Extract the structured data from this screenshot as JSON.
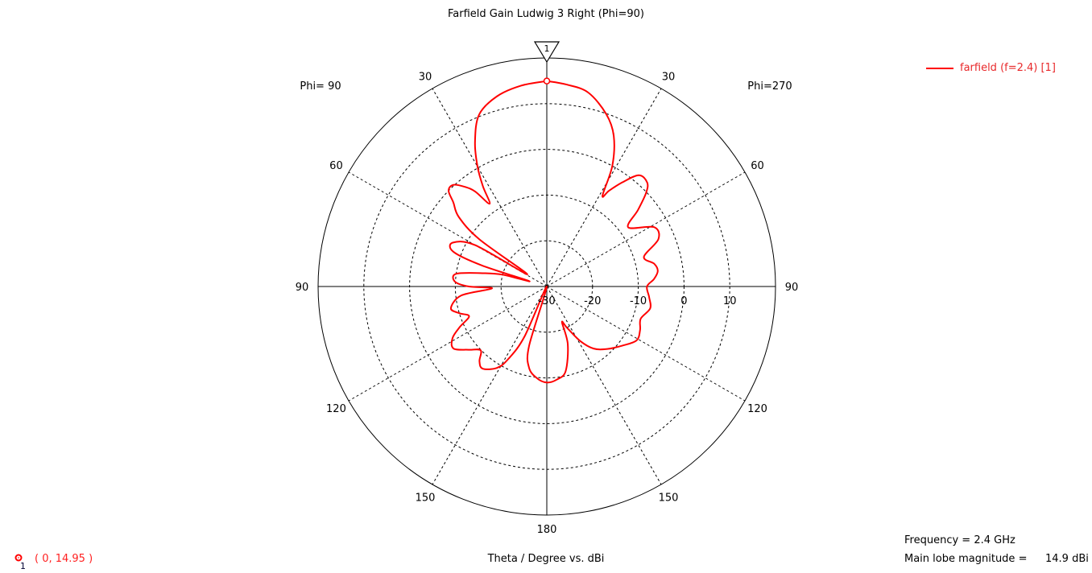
{
  "chart_data": {
    "type": "polar-line",
    "title": "Farfield Gain Ludwig 3 Right (Phi=90)",
    "axis_label": "Theta / Degree vs. dBi",
    "rlim": [
      -30,
      20
    ],
    "rticks": [
      "-30",
      "-20",
      "-10",
      "0",
      "10"
    ],
    "rtick_values": [
      -30,
      -20,
      -10,
      0,
      10
    ],
    "angle_ticks": {
      "left": [
        "30",
        "60",
        "90",
        "120",
        "150"
      ],
      "right": [
        "30",
        "60",
        "90",
        "120",
        "150"
      ],
      "bottom": "180"
    },
    "side_labels": {
      "left": "Phi= 90",
      "right": "Phi=270"
    },
    "grid": true,
    "legend": {
      "position": "top-right",
      "entries": [
        {
          "name": "farfield (f=2.4) [1]",
          "color": "#ff0000"
        }
      ]
    },
    "series": [
      {
        "name": "farfield (f=2.4) [1]",
        "color": "#ff0000",
        "phi_270_side": {
          "theta": [
            0,
            5.5,
            12,
            19,
            24,
            28.5,
            31.5,
            33,
            36,
            39.6,
            44,
            46.7,
            50,
            54,
            61,
            67,
            73,
            78,
            82,
            86,
            90,
            96,
            102,
            109,
            115,
            121,
            128,
            136,
            143,
            148.5,
            154,
            157,
            160,
            167.5,
            174,
            180
          ],
          "gain_dbi": [
            14.95,
            14.4,
            13.4,
            9.9,
            6.0,
            0,
            -6.7,
            -5,
            -1.8,
            1.6,
            1.6,
            -0.2,
            -4,
            -8,
            -3.2,
            -3.5,
            -7.8,
            -6,
            -5.5,
            -6.5,
            -8.1,
            -7.5,
            -6.9,
            -8.3,
            -7.5,
            -7.1,
            -9,
            -11,
            -13,
            -16,
            -20,
            -21.5,
            -16.6,
            -11,
            -9.5,
            -9.0
          ]
        },
        "phi_90_side": {
          "theta": [
            0,
            7.3,
            14.7,
            21.5,
            26.4,
            30,
            32.5,
            34.6,
            37,
            39.4,
            42.6,
            45.7,
            48,
            51.7,
            55,
            58,
            60,
            65,
            69.6,
            72,
            73,
            75,
            78,
            82,
            87,
            90,
            92,
            96,
            102.8,
            107,
            111,
            115,
            118.7,
            123.6,
            129,
            134,
            138,
            142,
            148.5,
            152,
            156,
            160,
            163.4,
            167.7,
            174,
            180
          ],
          "gain_dbi": [
            14.95,
            14.3,
            13.0,
            10.4,
            5.3,
            0.3,
            -4,
            -8,
            -4,
            -1.8,
            0.2,
            0,
            -2.5,
            -5.5,
            -12,
            -25,
            -11.9,
            -7.3,
            -8.2,
            -15,
            -26,
            -20,
            -16,
            -10,
            -9.9,
            -13,
            -18,
            -11.2,
            -8.5,
            -10,
            -11.8,
            -9,
            -6.5,
            -5.5,
            -8,
            -9.9,
            -8,
            -7.2,
            -9.1,
            -12,
            -18,
            -30,
            -16.4,
            -11.8,
            -9.8,
            -9.0
          ]
        }
      }
    ],
    "marker": {
      "id": "1",
      "theta": 0,
      "gain_dbi": 14.95,
      "readout": "( 0, 14.95 )"
    }
  },
  "info": {
    "frequency": "Frequency = 2.4 GHz",
    "main_lobe_label": "Main lobe magnitude =",
    "main_lobe_value": "14.9 dBi"
  }
}
